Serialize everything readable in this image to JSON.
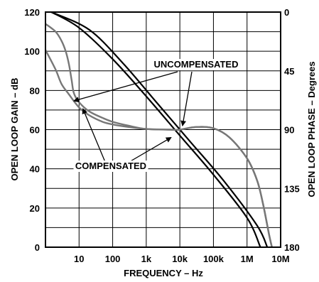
{
  "chart_data": {
    "type": "line",
    "title": "",
    "xlabel": "FREQUENCY – Hz",
    "ylabel": "OPEN LOOP GAIN – dB",
    "y2label": "OPEN LOOP PHASE – Degrees",
    "xscale": "log",
    "xlim": [
      1,
      10000000
    ],
    "ylim": [
      0,
      120
    ],
    "y2lim": [
      0,
      180
    ],
    "y2_inverted": true,
    "grid": true,
    "legend": "none",
    "xticks": [
      {
        "value": 10,
        "label": "10"
      },
      {
        "value": 100,
        "label": "100"
      },
      {
        "value": 1000,
        "label": "1k"
      },
      {
        "value": 10000,
        "label": "10k"
      },
      {
        "value": 100000,
        "label": "100k"
      },
      {
        "value": 1000000,
        "label": "1M"
      },
      {
        "value": 10000000,
        "label": "10M"
      }
    ],
    "yticks": [
      {
        "value": 0,
        "label": "0"
      },
      {
        "value": 20,
        "label": "20"
      },
      {
        "value": 40,
        "label": "40"
      },
      {
        "value": 60,
        "label": "60"
      },
      {
        "value": 80,
        "label": "80"
      },
      {
        "value": 100,
        "label": "100"
      },
      {
        "value": 120,
        "label": "120"
      }
    ],
    "y2ticks": [
      {
        "value": 0,
        "label": "0"
      },
      {
        "value": 45,
        "label": "45"
      },
      {
        "value": 90,
        "label": "90"
      },
      {
        "value": 135,
        "label": "135"
      },
      {
        "value": 180,
        "label": "180"
      }
    ],
    "series": [
      {
        "axis": "gain",
        "group": "uncompensated",
        "color": "#000000",
        "points": [
          [
            1.5,
            120
          ],
          [
            20,
            111
          ],
          [
            200,
            94
          ],
          [
            2000,
            74
          ],
          [
            20000,
            54
          ],
          [
            200000,
            34
          ],
          [
            2000000,
            11
          ],
          [
            4000000,
            0
          ]
        ]
      },
      {
        "axis": "gain",
        "group": "compensated",
        "color": "#000000",
        "points": [
          [
            1.5,
            120
          ],
          [
            10,
            112
          ],
          [
            100,
            96
          ],
          [
            1000,
            77
          ],
          [
            10000,
            57
          ],
          [
            100000,
            37
          ],
          [
            1000000,
            15
          ],
          [
            2500000,
            0
          ]
        ]
      },
      {
        "axis": "phase",
        "group": "compensated",
        "color": "#777777",
        "points": [
          [
            1,
            9
          ],
          [
            2,
            15
          ],
          [
            3,
            22
          ],
          [
            4,
            30
          ],
          [
            5,
            40
          ],
          [
            6,
            52
          ],
          [
            7,
            62
          ],
          [
            10,
            69
          ],
          [
            20,
            76
          ],
          [
            50,
            81
          ],
          [
            100,
            84
          ],
          [
            300,
            87
          ],
          [
            1000,
            89.5
          ],
          [
            5000,
            90
          ],
          [
            10000,
            90
          ],
          [
            30000,
            88
          ],
          [
            100000,
            89
          ],
          [
            300000,
            96
          ],
          [
            1000000,
            112
          ],
          [
            2000000,
            129
          ],
          [
            3000000,
            147
          ],
          [
            4500000,
            170
          ],
          [
            5500000,
            180
          ]
        ]
      },
      {
        "axis": "phase",
        "group": "compensated",
        "color": "#777777",
        "points": [
          [
            1,
            29
          ],
          [
            2,
            44
          ],
          [
            3,
            55
          ],
          [
            5,
            63
          ],
          [
            10,
            73
          ],
          [
            20,
            79
          ],
          [
            50,
            84
          ],
          [
            100,
            86
          ],
          [
            300,
            88
          ],
          [
            1000,
            89.5
          ],
          [
            5000,
            90
          ],
          [
            10000,
            90
          ],
          [
            30000,
            88
          ],
          [
            100000,
            89
          ],
          [
            300000,
            96
          ],
          [
            1000000,
            112
          ],
          [
            2000000,
            129
          ],
          [
            3000000,
            147
          ],
          [
            4500000,
            170
          ],
          [
            5500000,
            180
          ]
        ]
      }
    ],
    "annotations": [
      {
        "text": "UNCOMPENSATED",
        "group": "uncompensated"
      },
      {
        "text": "COMPENSATED",
        "group": "compensated"
      }
    ]
  }
}
